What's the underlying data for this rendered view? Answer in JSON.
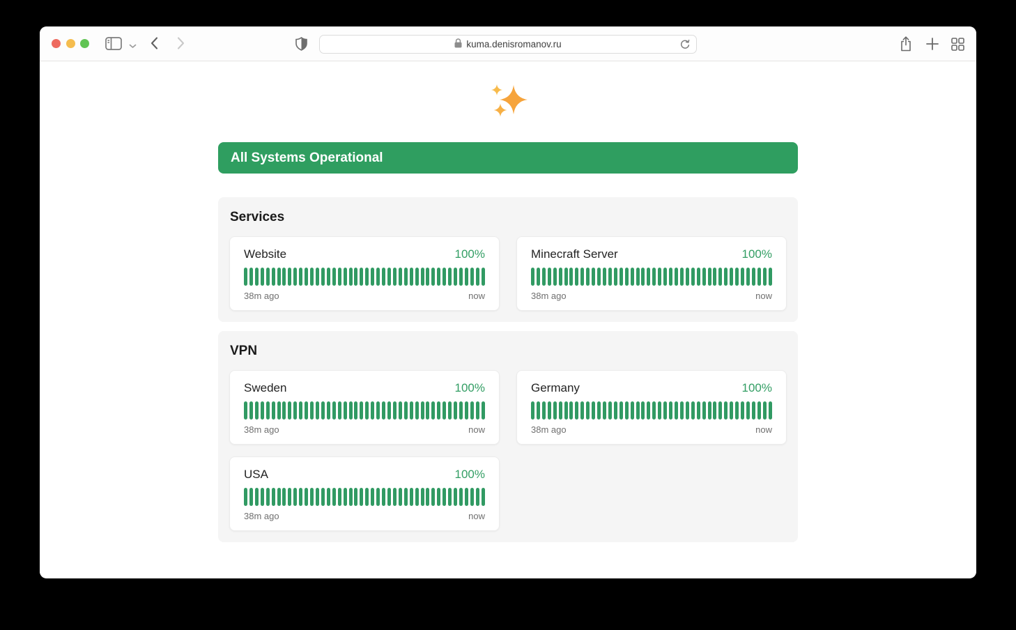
{
  "theme": {
    "green_banner": "#2f9e60",
    "green_beat": "#319a63",
    "green_text": "#339e64",
    "traffic_lights": {
      "close": "#ee6a5f",
      "minimize": "#f5bd4f",
      "zoom": "#61c454"
    }
  },
  "browser": {
    "url": "kuma.denisromanov.ru",
    "toolbar_icons": [
      "sidebar-toggle-icon",
      "sidebar-chevron-down-icon",
      "back-icon",
      "forward-icon",
      "privacy-shield-icon",
      "lock-icon",
      "reload-icon",
      "share-icon",
      "new-tab-icon",
      "tab-overview-icon"
    ]
  },
  "page": {
    "logo_icon": "sparkles-icon",
    "banner": {
      "label": "All Systems Operational"
    },
    "sections": [
      {
        "title": "Services",
        "monitors": [
          {
            "name": "Website",
            "uptime": "100%",
            "range_start": "38m ago",
            "range_end": "now",
            "beats": 44,
            "beat_status": "up"
          },
          {
            "name": "Minecraft Server",
            "uptime": "100%",
            "range_start": "38m ago",
            "range_end": "now",
            "beats": 44,
            "beat_status": "up"
          }
        ]
      },
      {
        "title": "VPN",
        "monitors": [
          {
            "name": "Sweden",
            "uptime": "100%",
            "range_start": "38m ago",
            "range_end": "now",
            "beats": 44,
            "beat_status": "up"
          },
          {
            "name": "Germany",
            "uptime": "100%",
            "range_start": "38m ago",
            "range_end": "now",
            "beats": 44,
            "beat_status": "up"
          },
          {
            "name": "USA",
            "uptime": "100%",
            "range_start": "38m ago",
            "range_end": "now",
            "beats": 44,
            "beat_status": "up"
          }
        ]
      }
    ]
  }
}
